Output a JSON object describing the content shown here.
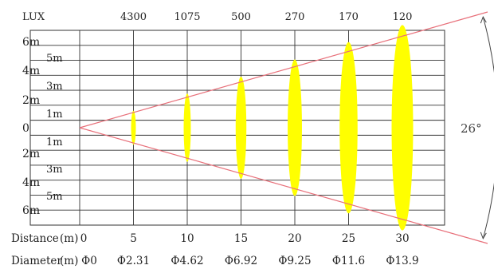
{
  "header": {
    "lux_label": "LUX"
  },
  "lux_values": [
    "4300",
    "1075",
    "500",
    "270",
    "170",
    "120"
  ],
  "y_labels": {
    "left": [
      "6m",
      "4m",
      "2m",
      "0",
      "2m",
      "4m",
      "6m"
    ],
    "inner": [
      "5m",
      "3m",
      "1m",
      "1m",
      "3m",
      "5m"
    ]
  },
  "distance": {
    "label": "Distance",
    "unit": "(m)",
    "values": [
      "0",
      "5",
      "10",
      "15",
      "20",
      "25",
      "30"
    ]
  },
  "diameter": {
    "label": "Diameter",
    "unit": "(m)",
    "values": [
      "Φ0",
      "Φ2.31",
      "Φ4.62",
      "Φ6.92",
      "Φ9.25",
      "Φ11.6",
      "Φ13.9"
    ]
  },
  "beam": {
    "angle_label": "26°",
    "distances_m": [
      5,
      10,
      15,
      20,
      25,
      30
    ],
    "diameters_m": [
      2.31,
      4.62,
      6.92,
      9.25,
      11.6,
      13.9
    ]
  },
  "colors": {
    "spot": "#ffff00",
    "beam_edge": "#e8707a",
    "grid": "#333333",
    "angle_arc": "#444444"
  }
}
